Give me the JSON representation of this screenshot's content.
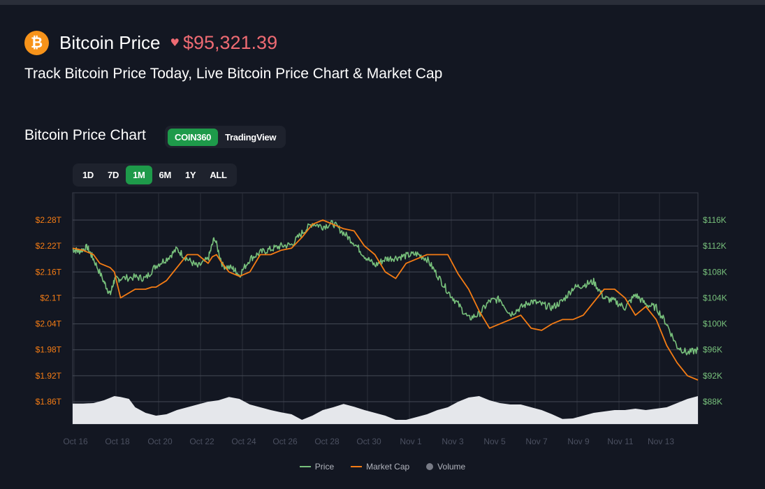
{
  "header": {
    "coin_symbol": "₿",
    "title": "Bitcoin Price",
    "trend_icon": "heart-icon",
    "price": "$95,321.39",
    "subtitle": "Track Bitcoin Price Today, Live Bitcoin Price Chart & Market Cap"
  },
  "chart_section": {
    "title": "Bitcoin Price Chart",
    "source_tabs": [
      {
        "label": "COIN360",
        "active": true
      },
      {
        "label": "TradingView",
        "active": false
      }
    ],
    "range_tabs": [
      {
        "label": "1D",
        "active": false
      },
      {
        "label": "7D",
        "active": false
      },
      {
        "label": "1M",
        "active": true
      },
      {
        "label": "6M",
        "active": false
      },
      {
        "label": "1Y",
        "active": false
      },
      {
        "label": "ALL",
        "active": false
      }
    ]
  },
  "colors": {
    "background": "#131722",
    "price_line": "#78c17c",
    "market_cap_line": "#f57c14",
    "volume_fill": "#e5e7eb",
    "volume_legend": "#787b86",
    "active_tab": "#1e9a4a",
    "price_text": "#ee6b73",
    "left_axis_text": "#f57c14",
    "right_axis_text": "#78c17c"
  },
  "chart_data": {
    "type": "line",
    "x_ticks": [
      "Oct 16",
      "Oct 18",
      "Oct 20",
      "Oct 22",
      "Oct 24",
      "Oct 26",
      "Oct 28",
      "Oct 30",
      "Nov 1",
      "Nov 3",
      "Nov 5",
      "Nov 7",
      "Nov 9",
      "Nov 11",
      "Nov 13"
    ],
    "x_range": [
      0,
      30
    ],
    "left_axis": {
      "ticks": [
        "$2.28T",
        "$2.22T",
        "$2.16T",
        "$2.1T",
        "$2.04T",
        "$1.98T",
        "$1.92T",
        "$1.86T"
      ],
      "tick_values": [
        2.28,
        2.22,
        2.16,
        2.1,
        2.04,
        1.98,
        1.92,
        1.86
      ],
      "unit": "T"
    },
    "right_axis": {
      "ticks": [
        "$116K",
        "$112K",
        "$108K",
        "$104K",
        "$100K",
        "$96K",
        "$92K",
        "$88K"
      ],
      "tick_values": [
        116,
        112,
        108,
        104,
        100,
        96,
        92,
        88
      ],
      "unit": "K"
    },
    "grid": true,
    "legend_position": "bottom-center",
    "series": [
      {
        "name": "Price",
        "axis": "right",
        "x": [
          0,
          0.3,
          0.7,
          1.0,
          1.5,
          1.8,
          2.0,
          2.3,
          3.0,
          3.5,
          4.0,
          4.5,
          5.0,
          5.5,
          6.0,
          6.5,
          6.8,
          7.2,
          7.7,
          8.0,
          8.5,
          9.0,
          9.5,
          10.0,
          10.5,
          11.0,
          11.5,
          12.0,
          12.5,
          13.0,
          13.5,
          14.0,
          14.5,
          15.0,
          15.5,
          16.0,
          16.5,
          17.0,
          17.5,
          18.0,
          18.5,
          19.0,
          19.5,
          20.0,
          20.5,
          21.0,
          21.5,
          22.0,
          22.5,
          23.0,
          23.5,
          24.0,
          24.5,
          25.0,
          25.5,
          26.0,
          26.5,
          27.0,
          27.5,
          28.0,
          28.5,
          29.0,
          29.5,
          30.0
        ],
        "values": [
          111.5,
          111.2,
          111.8,
          110.0,
          106.5,
          104.5,
          106.8,
          107.0,
          107.2,
          107.0,
          109.0,
          110.0,
          111.5,
          110.0,
          108.8,
          110.0,
          113.3,
          109.0,
          108.5,
          107.5,
          110.0,
          111.0,
          111.5,
          112.0,
          112.2,
          114.0,
          115.5,
          115.0,
          115.5,
          114.0,
          112.5,
          110.5,
          109.0,
          110.0,
          110.2,
          110.5,
          110.8,
          110.0,
          107.5,
          105.0,
          103.0,
          100.8,
          101.5,
          103.5,
          103.8,
          101.5,
          102.5,
          103.5,
          103.0,
          102.5,
          103.5,
          105.5,
          106.0,
          106.5,
          104.0,
          103.5,
          102.5,
          104.5,
          103.0,
          102.5,
          100.0,
          96.5,
          95.5,
          96.0
        ]
      },
      {
        "name": "Market Cap",
        "axis": "left",
        "x": [
          0,
          0.5,
          1.0,
          1.3,
          1.8,
          2.0,
          2.3,
          3.0,
          3.5,
          3.8,
          4.0,
          4.5,
          5.0,
          5.5,
          6.0,
          6.5,
          6.7,
          6.9,
          7.1,
          7.5,
          8.0,
          8.5,
          9.0,
          9.5,
          10.0,
          10.5,
          11.0,
          11.5,
          12.0,
          12.5,
          13.0,
          13.5,
          14.0,
          14.5,
          15.0,
          15.5,
          16.0,
          16.5,
          17.0,
          17.5,
          18.0,
          18.5,
          19.0,
          19.5,
          20.0,
          20.5,
          21.0,
          21.5,
          22.0,
          22.5,
          23.0,
          23.5,
          24.0,
          24.5,
          25.0,
          25.5,
          26.0,
          26.5,
          27.0,
          27.5,
          28.0,
          28.5,
          29.0,
          29.5,
          30.0
        ],
        "values": [
          2.215,
          2.21,
          2.2,
          2.18,
          2.17,
          2.16,
          2.1,
          2.12,
          2.12,
          2.125,
          2.125,
          2.14,
          2.17,
          2.2,
          2.2,
          2.18,
          2.195,
          2.2,
          2.185,
          2.16,
          2.15,
          2.16,
          2.2,
          2.2,
          2.21,
          2.215,
          2.24,
          2.27,
          2.28,
          2.27,
          2.26,
          2.255,
          2.22,
          2.2,
          2.16,
          2.145,
          2.18,
          2.19,
          2.2,
          2.2,
          2.2,
          2.155,
          2.12,
          2.07,
          2.03,
          2.04,
          2.05,
          2.06,
          2.03,
          2.025,
          2.04,
          2.05,
          2.05,
          2.06,
          2.09,
          2.12,
          2.12,
          2.1,
          2.06,
          2.08,
          2.05,
          1.99,
          1.95,
          1.92,
          1.91
        ]
      },
      {
        "name": "Volume",
        "axis": "volume",
        "x": [
          0,
          0.5,
          1.0,
          1.5,
          2.0,
          2.3,
          2.7,
          3.0,
          3.5,
          4.0,
          4.5,
          5.0,
          5.5,
          6.0,
          6.5,
          7.0,
          7.5,
          8.0,
          8.5,
          9.0,
          9.5,
          10.0,
          10.5,
          11.0,
          11.5,
          12.0,
          12.5,
          13.0,
          13.5,
          14.0,
          14.5,
          15.0,
          15.5,
          16.0,
          16.5,
          17.0,
          17.5,
          18.0,
          18.5,
          19.0,
          19.5,
          20.0,
          20.5,
          21.0,
          21.5,
          22.0,
          22.5,
          23.0,
          23.5,
          24.0,
          24.5,
          25.0,
          25.5,
          26.0,
          26.5,
          27.0,
          27.5,
          28.0,
          28.5,
          29.0,
          29.5,
          30.0
        ],
        "values": [
          0.73,
          0.73,
          0.75,
          0.85,
          1.0,
          0.97,
          0.9,
          0.6,
          0.4,
          0.3,
          0.35,
          0.5,
          0.6,
          0.7,
          0.8,
          0.85,
          0.97,
          0.9,
          0.7,
          0.6,
          0.5,
          0.42,
          0.35,
          0.15,
          0.3,
          0.5,
          0.6,
          0.72,
          0.62,
          0.5,
          0.4,
          0.3,
          0.15,
          0.15,
          0.25,
          0.35,
          0.5,
          0.6,
          0.8,
          0.95,
          1.0,
          0.85,
          0.75,
          0.7,
          0.7,
          0.6,
          0.5,
          0.35,
          0.18,
          0.2,
          0.3,
          0.4,
          0.45,
          0.5,
          0.5,
          0.55,
          0.5,
          0.55,
          0.6,
          0.75,
          0.9,
          1.0
        ]
      }
    ]
  },
  "legend": [
    {
      "label": "Price",
      "swatch": "line",
      "color": "#78c17c"
    },
    {
      "label": "Market Cap",
      "swatch": "line",
      "color": "#f57c14"
    },
    {
      "label": "Volume",
      "swatch": "dot",
      "color": "#787b86"
    }
  ]
}
